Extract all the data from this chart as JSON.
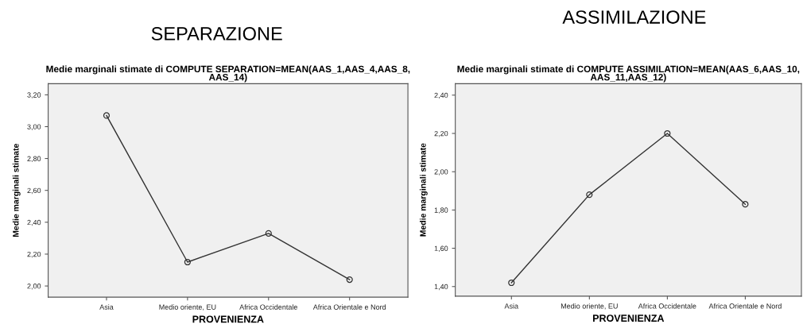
{
  "chart_data": [
    {
      "type": "line",
      "title": "SEPARAZIONE",
      "subtitle": "Medie marginali stimate di COMPUTE SEPARATION=MEAN(AAS_1,AAS_4,AAS_8,\nAAS_14)",
      "xlabel": "PROVENIENZA",
      "ylabel": "Medie marginali stimate",
      "categories": [
        "Asia",
        "Medio oriente, EU",
        "Africa Occidentale",
        "Africa Orientale e Nord"
      ],
      "series": [
        {
          "color": "#333333",
          "values": [
            3.07,
            2.15,
            2.33,
            2.04
          ]
        }
      ],
      "ylim": [
        1.93,
        3.27
      ],
      "yticks": [
        {
          "value": 2.0,
          "label": "2,00"
        },
        {
          "value": 2.2,
          "label": "2,20"
        },
        {
          "value": 2.4,
          "label": "2,40"
        },
        {
          "value": 2.6,
          "label": "2,60"
        },
        {
          "value": 2.8,
          "label": "2,80"
        },
        {
          "value": 3.0,
          "label": "3,00"
        },
        {
          "value": 3.2,
          "label": "3,20"
        }
      ],
      "grid": false,
      "marker": "circle",
      "line_style": "solid"
    },
    {
      "type": "line",
      "title": "ASSIMILAZIONE",
      "subtitle": "Medie marginali stimate di COMPUTE ASSIMILATION=MEAN(AAS_6,AAS_10,\nAAS_11,AAS_12)",
      "xlabel": "PROVENIENZA",
      "ylabel": "Medie marginali stimate",
      "categories": [
        "Asia",
        "Medio oriente, EU",
        "Africa Occidentale",
        "Africa Orientale e Nord"
      ],
      "series": [
        {
          "color": "#333333",
          "values": [
            1.42,
            1.88,
            2.2,
            1.83
          ]
        }
      ],
      "ylim": [
        1.35,
        2.46
      ],
      "yticks": [
        {
          "value": 1.4,
          "label": "1,40"
        },
        {
          "value": 1.6,
          "label": "1,60"
        },
        {
          "value": 1.8,
          "label": "1,80"
        },
        {
          "value": 2.0,
          "label": "2,00"
        },
        {
          "value": 2.2,
          "label": "2,20"
        },
        {
          "value": 2.4,
          "label": "2,40"
        }
      ],
      "grid": false,
      "marker": "circle",
      "line_style": "solid"
    }
  ]
}
